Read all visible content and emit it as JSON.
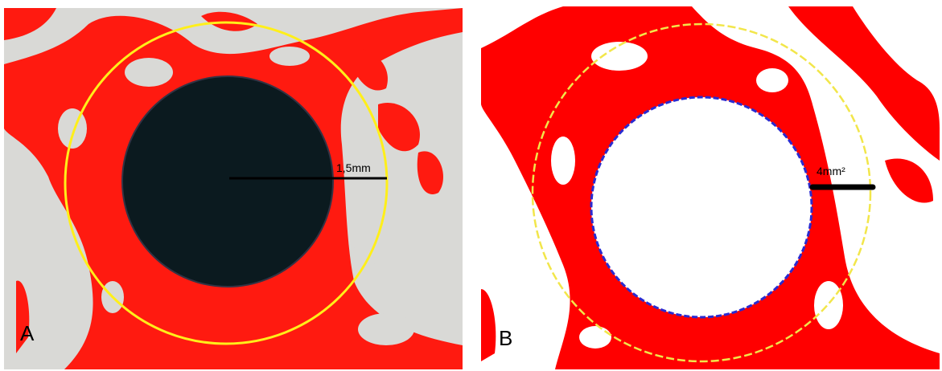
{
  "panels": [
    {
      "label": "A",
      "scale_label": "1,5mm"
    },
    {
      "label": "B",
      "scale_label": "4mm²"
    }
  ]
}
